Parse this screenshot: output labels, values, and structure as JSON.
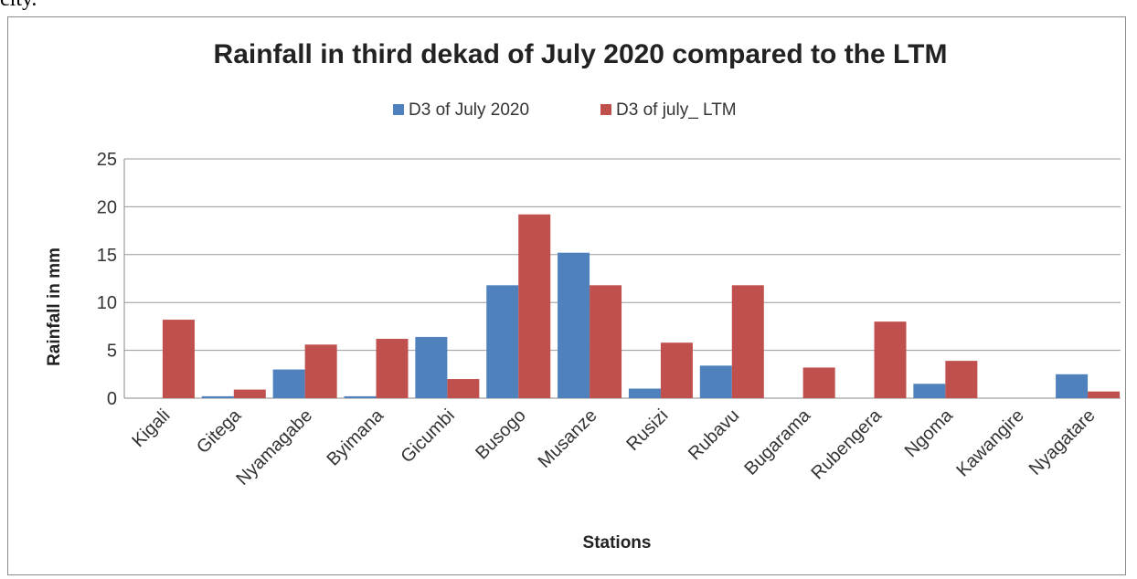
{
  "page": {
    "top_text": "city."
  },
  "chart_data": {
    "type": "bar",
    "title": "Rainfall in third dekad of July 2020 compared to the LTM",
    "xlabel": "Stations",
    "ylabel": "Rainfall in mm",
    "ylim": [
      0,
      25
    ],
    "yticks": [
      0,
      5,
      10,
      15,
      20,
      25
    ],
    "grid": true,
    "legend_position": "top",
    "categories": [
      "Kigali",
      "Gitega",
      "Nyamagabe",
      "Byimana",
      "Gicumbi",
      "Busogo",
      "Musanze",
      "Rusizi",
      "Rubavu",
      "Bugarama",
      "Rubengera",
      "Ngoma",
      "Kawangire",
      "Nyagatare"
    ],
    "series": [
      {
        "name": "D3 of July 2020",
        "color": "#4F81BD",
        "values": [
          0,
          0.2,
          3.0,
          0.2,
          6.4,
          11.8,
          15.2,
          1.0,
          3.4,
          0,
          0,
          1.5,
          0,
          2.5
        ]
      },
      {
        "name": "D3 of july_ LTM",
        "color": "#C0504D",
        "values": [
          8.2,
          0.9,
          5.6,
          6.2,
          2.0,
          19.2,
          11.8,
          5.8,
          11.8,
          3.2,
          8.0,
          3.9,
          0,
          0.7
        ]
      }
    ]
  }
}
